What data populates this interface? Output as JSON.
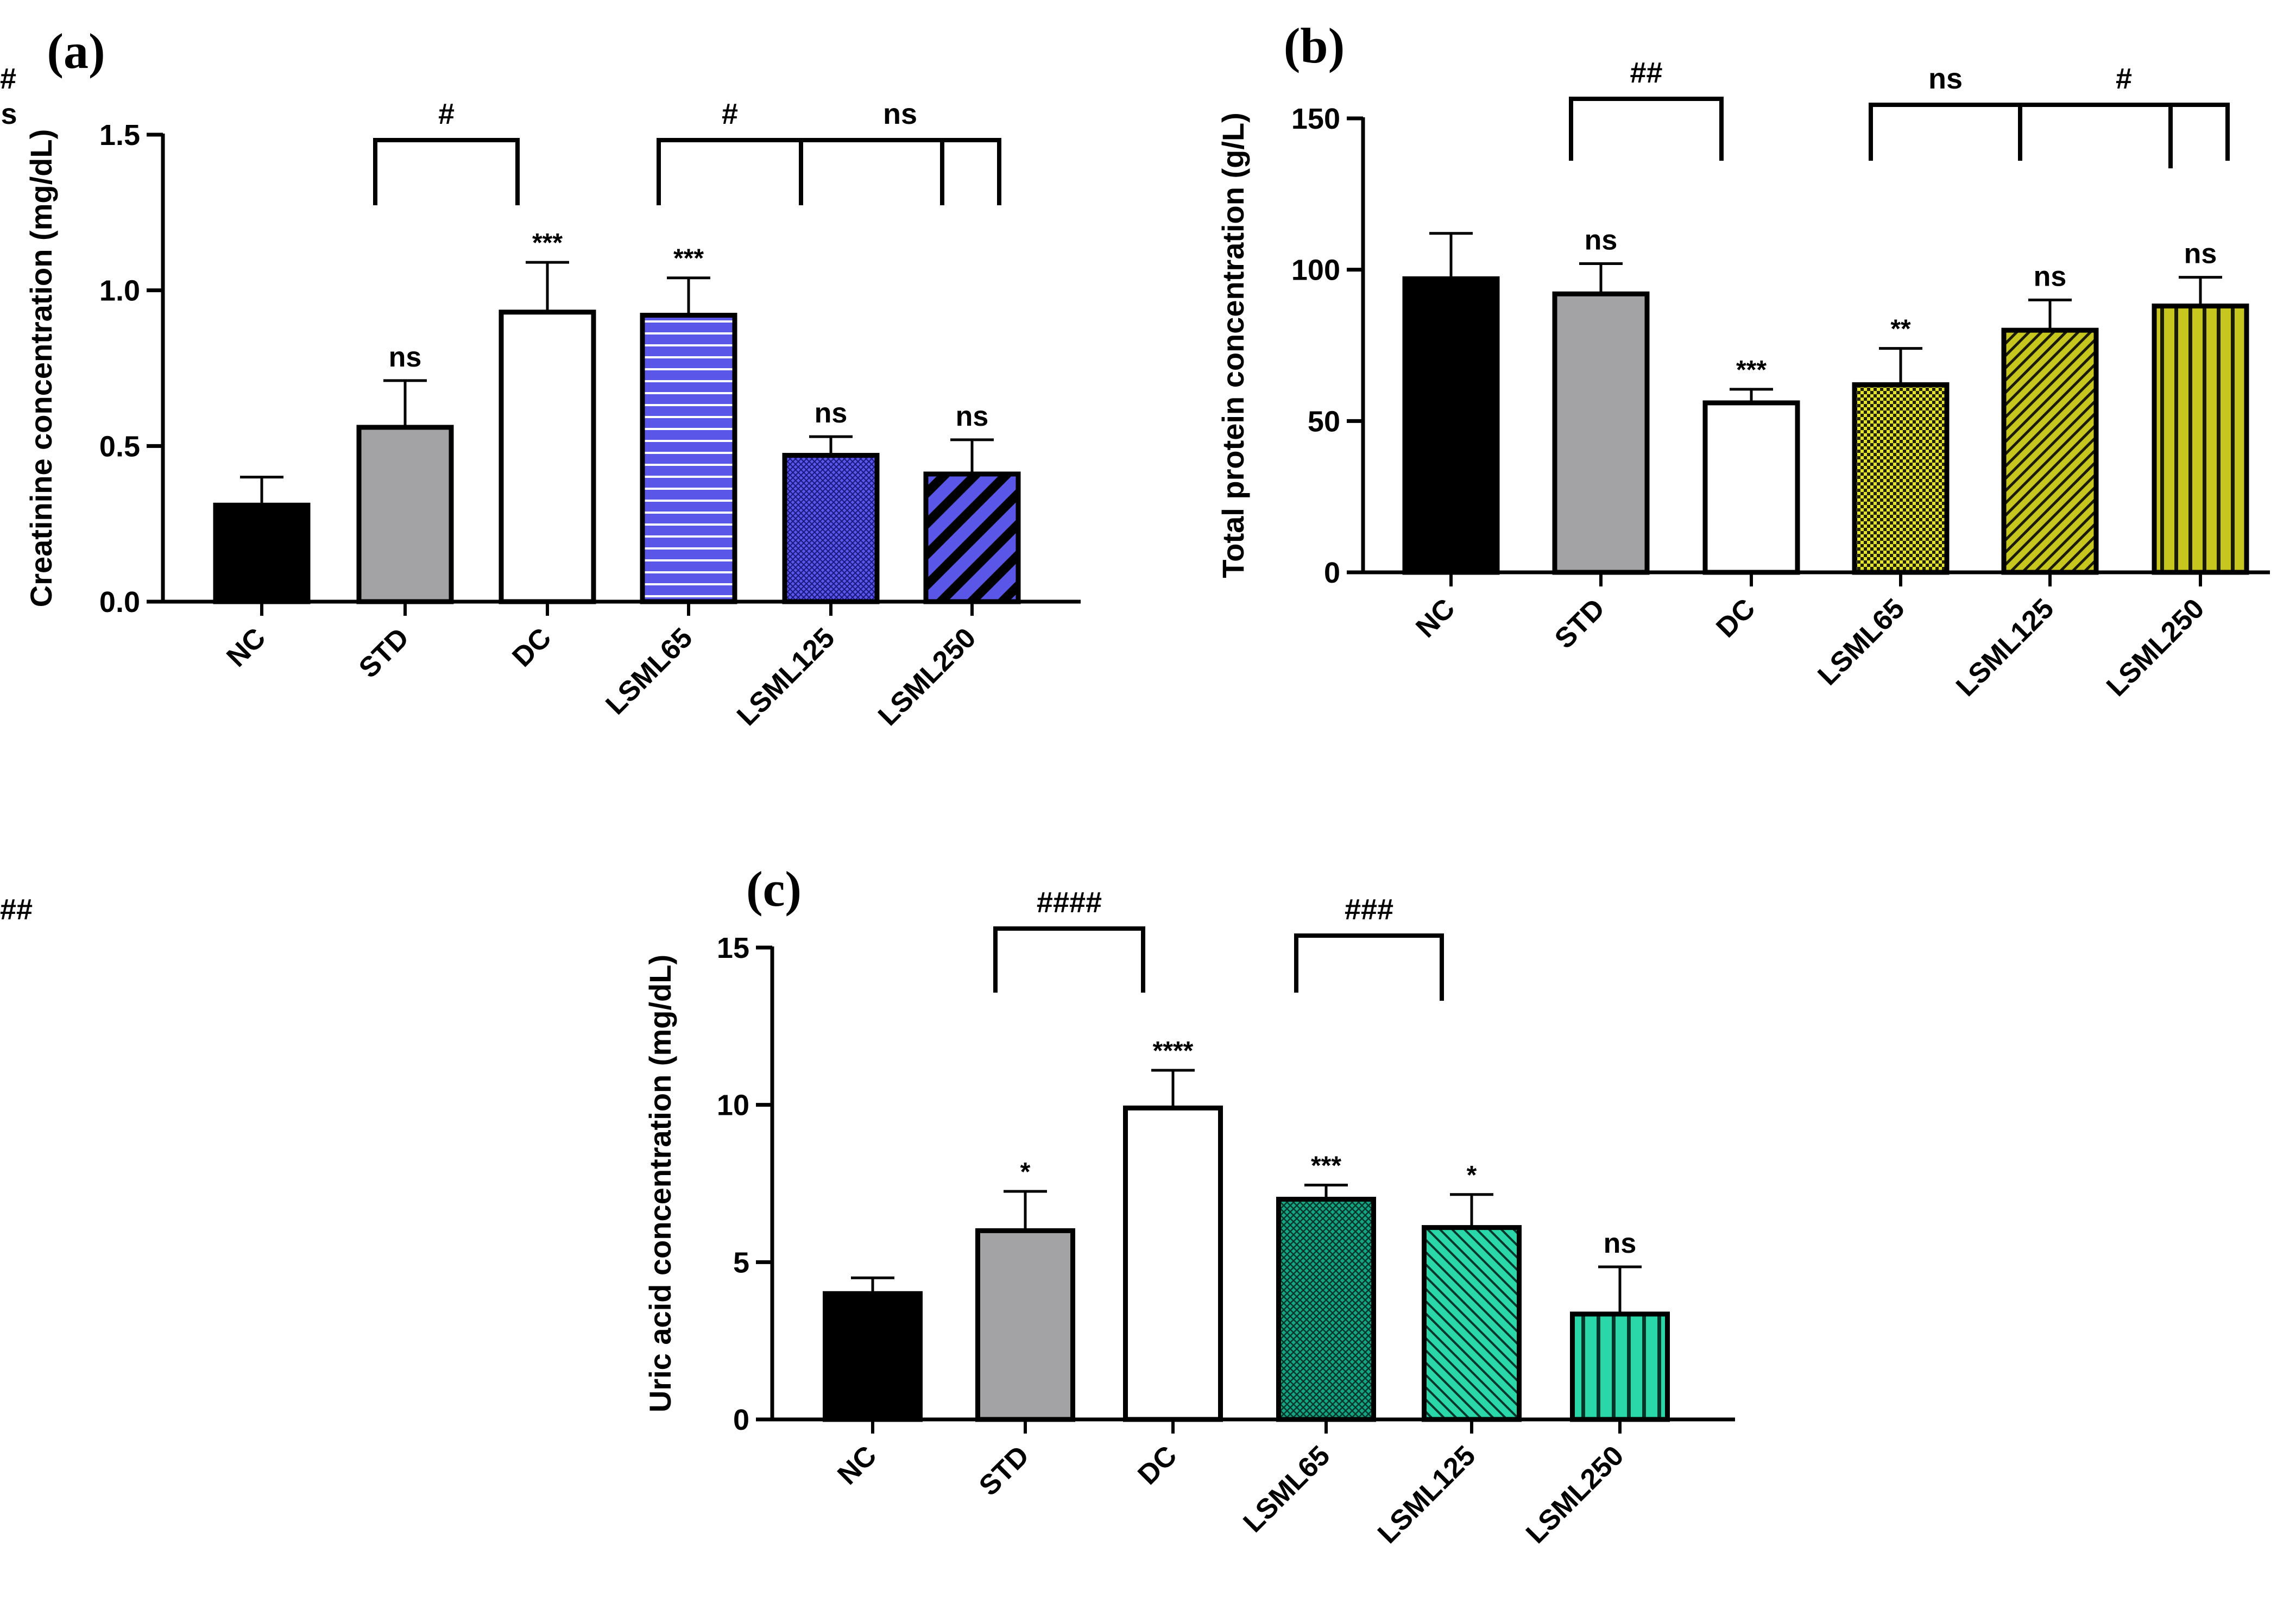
{
  "chart_data": [
    {
      "type": "bar",
      "panel_label": "(a)",
      "ylabel": "Creatinine concentration (mg/dL)",
      "ylim": [
        0,
        1.5
      ],
      "yticks": [
        "0.0",
        "0.5",
        "1.0",
        "1.5"
      ],
      "categories": [
        "NC",
        "STD",
        "DC",
        "LSML65",
        "LSML125",
        "LSML250"
      ],
      "values": [
        0.31,
        0.56,
        0.93,
        0.92,
        0.47,
        0.41
      ],
      "errors": [
        0.09,
        0.15,
        0.16,
        0.12,
        0.06,
        0.11
      ],
      "significance": [
        "",
        "ns",
        "***",
        "***",
        "ns",
        "ns"
      ],
      "fill_color": [
        "#000000",
        "#a3a3a6",
        "#ffffff",
        "#5a56e8",
        "#5a56e8",
        "#5a56e8"
      ],
      "fill_pattern": [
        "solid",
        "solid",
        "solid",
        "horizontal-lines",
        "crosshatch-dense",
        "diagonal-wide"
      ],
      "brackets": [
        {
          "from": 1,
          "to": 2,
          "label": "#"
        },
        {
          "from": 3,
          "to": 4,
          "label": "#"
        },
        {
          "from": 4,
          "to": 5,
          "label": "ns"
        },
        {
          "from": 5,
          "to": 6,
          "label": "ns"
        }
      ]
    },
    {
      "type": "bar",
      "panel_label": "(b)",
      "ylabel": "Total protein concentration (g/L)",
      "ylim": [
        0,
        150
      ],
      "yticks": [
        "0",
        "50",
        "100",
        "150"
      ],
      "categories": [
        "NC",
        "STD",
        "DC",
        "LSML65",
        "LSML125",
        "LSML250"
      ],
      "values": [
        97,
        92,
        56,
        62,
        80,
        88
      ],
      "errors": [
        15,
        10,
        4.5,
        12,
        10,
        9.5
      ],
      "significance": [
        "",
        "ns",
        "***",
        "**",
        "ns",
        "ns"
      ],
      "fill_color": [
        "#000000",
        "#a3a3a6",
        "#ffffff",
        "#d8d820",
        "#c6c61e",
        "#c6c61e"
      ],
      "fill_pattern": [
        "solid",
        "solid",
        "solid",
        "checker",
        "diagonal-fine",
        "vertical-lines"
      ],
      "brackets": [
        {
          "from": 1,
          "to": 2,
          "label": "##"
        },
        {
          "from": 3,
          "to": 4,
          "label": "ns"
        },
        {
          "from": 4,
          "to": 5,
          "label": "#"
        },
        {
          "from": 5,
          "to": 6,
          "label": "##"
        }
      ]
    },
    {
      "type": "bar",
      "panel_label": "(c)",
      "ylabel": "Uric acid concentration (mg/dL)",
      "ylim": [
        0,
        15
      ],
      "yticks": [
        "0",
        "5",
        "10",
        "15"
      ],
      "categories": [
        "NC",
        "STD",
        "DC",
        "LSML65",
        "LSML125",
        "LSML250"
      ],
      "values": [
        4.0,
        6.0,
        9.9,
        7.0,
        6.1,
        3.35
      ],
      "errors": [
        0.5,
        1.25,
        1.2,
        0.45,
        1.05,
        1.5
      ],
      "significance": [
        "",
        "*",
        "****",
        "***",
        "*",
        "ns"
      ],
      "fill_color": [
        "#000000",
        "#a3a3a6",
        "#ffffff",
        "#16a584",
        "#2ad7a8",
        "#2ad7a8"
      ],
      "fill_pattern": [
        "solid",
        "solid",
        "solid",
        "crosshatch-dense",
        "diagonal-fine-reverse",
        "vertical-lines"
      ],
      "brackets": [
        {
          "from": 1,
          "to": 2,
          "label": "####"
        },
        {
          "from": 3,
          "to": 4,
          "label": "###"
        },
        {
          "from": 4,
          "to": 6,
          "label": "####"
        }
      ]
    }
  ]
}
